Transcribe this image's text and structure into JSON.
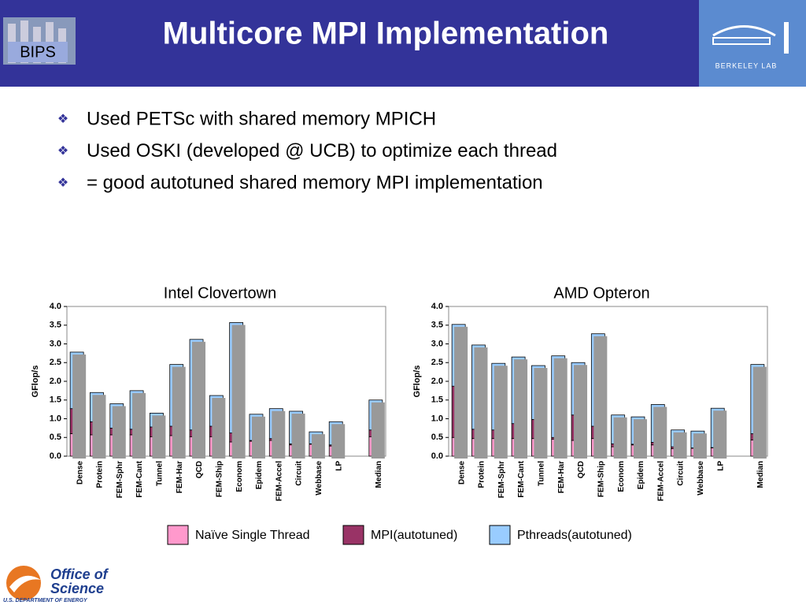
{
  "header": {
    "title": "Multicore MPI Implementation",
    "left_logo": "BIPS",
    "right_logo": "BERKELEY LAB"
  },
  "bullets": [
    "Used PETSc with shared memory MPICH",
    "Used OSKI (developed @ UCB) to optimize each thread",
    "= good autotuned shared memory MPI implementation"
  ],
  "footer": {
    "logo_line1": "Office of",
    "logo_line2": "Science",
    "logo_line3": "U.S. DEPARTMENT OF ENERGY"
  },
  "chart_data": [
    {
      "type": "stacked_bar",
      "title": "Intel Clovertown",
      "y_label": "GFlop/s",
      "categories": [
        "Dense",
        "Protein",
        "FEM-Sphr",
        "FEM-Cant",
        "Tunnel",
        "FEM-Har",
        "QCD",
        "FEM-Ship",
        "Econom",
        "Epidem",
        "FEM-Accel",
        "Circuit",
        "Webbase",
        "LP",
        null,
        "Median"
      ],
      "series": [
        {
          "name": "Naïve Single Thread",
          "color": "#ff99cc",
          "values": [
            0.6,
            0.57,
            0.57,
            0.57,
            0.52,
            0.55,
            0.52,
            0.52,
            0.38,
            0.4,
            0.42,
            0.3,
            0.32,
            0.27,
            null,
            0.52
          ]
        },
        {
          "name": "MPI(autotuned)",
          "color": "#993366",
          "values": [
            0.67,
            0.35,
            0.18,
            0.15,
            0.26,
            0.25,
            0.18,
            0.28,
            0.24,
            0.02,
            0.05,
            0.03,
            0.01,
            0.03,
            null,
            0.18
          ]
        },
        {
          "name": "Pthreads(autotuned)",
          "color": "#99ccff",
          "values": [
            1.51,
            0.78,
            0.65,
            1.03,
            0.37,
            1.65,
            2.42,
            0.82,
            2.95,
            0.7,
            0.8,
            0.87,
            0.32,
            0.62,
            null,
            0.8
          ]
        }
      ],
      "ylim": [
        0,
        4
      ],
      "yticks": [
        {
          "value": 0,
          "label": "0.0"
        },
        0.5,
        {
          "value": 1,
          "label": "1.0"
        },
        1.5,
        {
          "value": 2,
          "label": "2.0"
        },
        2.5,
        {
          "value": 3,
          "label": "3.0"
        },
        3.5,
        {
          "value": 4,
          "label": "4.0"
        }
      ]
    },
    {
      "type": "stacked_bar",
      "title": "AMD Opteron",
      "y_label": "GFlop/s",
      "categories": [
        "Dense",
        "Protein",
        "FEM-Sphr",
        "FEM-Cant",
        "Tunnel",
        "FEM-Har",
        "QCD",
        "FEM-Ship",
        "Econom",
        "Epidem",
        "FEM-Accel",
        "Circuit",
        "Webbase",
        "LP",
        null,
        "Median"
      ],
      "series": [
        {
          "name": "Naïve Single Thread",
          "color": "#ff99cc",
          "values": [
            0.5,
            0.47,
            0.47,
            0.47,
            0.47,
            0.45,
            0.42,
            0.47,
            0.25,
            0.3,
            0.3,
            0.2,
            0.21,
            0.22,
            null,
            0.43
          ]
        },
        {
          "name": "MPI(autotuned)",
          "color": "#993366",
          "values": [
            1.37,
            0.25,
            0.23,
            0.4,
            0.51,
            0.05,
            0.68,
            0.33,
            0.08,
            0.02,
            0.07,
            0.05,
            0.01,
            0.01,
            null,
            0.17
          ]
        },
        {
          "name": "Pthreads(autotuned)",
          "color": "#99ccff",
          "values": [
            1.65,
            2.25,
            1.78,
            1.78,
            1.44,
            2.18,
            1.4,
            2.47,
            0.77,
            0.73,
            1.01,
            0.45,
            0.45,
            1.05,
            null,
            1.85
          ]
        }
      ],
      "ylim": [
        0,
        4
      ],
      "yticks": [
        {
          "value": 0,
          "label": "0.0"
        },
        0.5,
        {
          "value": 1,
          "label": "1.0"
        },
        1.5,
        {
          "value": 2,
          "label": "2.0"
        },
        2.5,
        {
          "value": 3,
          "label": "3.0"
        },
        3.5,
        {
          "value": 4,
          "label": "4.0"
        }
      ]
    }
  ]
}
